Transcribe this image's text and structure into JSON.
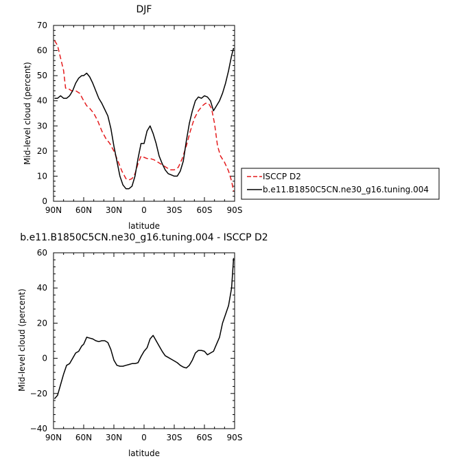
{
  "chart_data": [
    {
      "type": "line",
      "title": "DJF",
      "xlabel": "latitude",
      "ylabel": "Mid-level cloud (percent)",
      "xlim": [
        90,
        -90
      ],
      "ylim": [
        0,
        70
      ],
      "x_ticks": [
        90,
        60,
        30,
        0,
        -30,
        -60,
        -90
      ],
      "x_tick_labels": [
        "90N",
        "60N",
        "30N",
        "0",
        "30S",
        "60S",
        "90S"
      ],
      "y_ticks": [
        0,
        10,
        20,
        30,
        40,
        50,
        60,
        70
      ],
      "y_tick_labels": [
        "0",
        "10",
        "20",
        "30",
        "40",
        "50",
        "60",
        "70"
      ],
      "legend_position": "right",
      "series": [
        {
          "name": "ISCCP D2",
          "color": "#e41a1c",
          "dash": "dashed",
          "x": [
            89,
            86,
            83,
            80,
            78,
            76,
            72,
            68,
            64,
            60,
            57,
            54,
            50,
            46,
            42,
            38,
            34,
            30,
            26,
            22,
            18,
            15,
            12,
            9,
            6,
            3,
            0,
            -3,
            -6,
            -10,
            -14,
            -18,
            -22,
            -26,
            -30,
            -34,
            -38,
            -42,
            -46,
            -50,
            -54,
            -58,
            -61,
            -64,
            -67,
            -70,
            -73,
            -76,
            -80,
            -84,
            -87,
            -89
          ],
          "y": [
            64,
            62,
            57,
            52,
            45,
            45,
            44,
            44,
            43,
            40,
            38,
            37,
            35,
            32,
            28,
            25,
            23,
            20,
            16,
            12,
            9,
            8.5,
            9,
            11,
            15,
            18,
            17.5,
            17,
            17,
            16.5,
            15.5,
            14.5,
            13.5,
            12.5,
            12.5,
            13.5,
            17,
            22,
            28,
            33,
            36,
            38,
            39,
            39,
            37,
            31,
            22,
            18,
            15.5,
            12,
            8,
            4
          ]
        },
        {
          "name": "b.e11.B1850C5CN.ne30_g16.tuning.004",
          "color": "#000000",
          "dash": "solid",
          "x": [
            89,
            86,
            83,
            80,
            77,
            74,
            71,
            68,
            65,
            62,
            60,
            57,
            54,
            51,
            48,
            45,
            42,
            39,
            36,
            33,
            30,
            27,
            24,
            21,
            18,
            15,
            12,
            9,
            6,
            3,
            0,
            -3,
            -6,
            -9,
            -12,
            -15,
            -18,
            -21,
            -24,
            -27,
            -30,
            -33,
            -36,
            -39,
            -42,
            -45,
            -48,
            -51,
            -54,
            -57,
            -60,
            -63,
            -66,
            -69,
            -72,
            -75,
            -78,
            -81,
            -84,
            -87,
            -89
          ],
          "y": [
            41,
            41,
            42,
            41,
            41,
            42,
            44,
            47,
            49,
            50,
            50,
            51,
            49.5,
            47,
            44,
            41,
            39,
            36.5,
            34,
            29,
            22,
            16,
            10,
            6.5,
            5,
            5,
            6,
            10,
            17,
            23,
            23,
            28,
            30,
            27,
            23,
            18,
            15,
            12.5,
            11,
            10.5,
            10,
            10,
            12,
            16,
            24,
            31,
            36,
            40,
            41.5,
            41,
            42,
            41.5,
            40,
            36,
            38,
            40,
            43,
            47,
            52,
            58,
            61
          ]
        }
      ]
    },
    {
      "type": "line",
      "title": "b.e11.B1850C5CN.ne30_g16.tuning.004 - ISCCP D2",
      "xlabel": "latitude",
      "ylabel": "Mid-level cloud (percent)",
      "xlim": [
        90,
        -90
      ],
      "ylim": [
        -40,
        60
      ],
      "x_ticks": [
        90,
        60,
        30,
        0,
        -30,
        -60,
        -90
      ],
      "x_tick_labels": [
        "90N",
        "60N",
        "30N",
        "0",
        "30S",
        "60S",
        "90S"
      ],
      "y_ticks": [
        -40,
        -20,
        0,
        20,
        40,
        60
      ],
      "y_tick_labels": [
        "−40",
        "−20",
        "0",
        "20",
        "40",
        "60"
      ],
      "series": [
        {
          "color": "#000000",
          "dash": "solid",
          "x": [
            89,
            86,
            83,
            80,
            77,
            74,
            71,
            68,
            65,
            62,
            60,
            57,
            54,
            51,
            48,
            45,
            42,
            39,
            36,
            33,
            30,
            27,
            24,
            21,
            18,
            15,
            12,
            9,
            6,
            3,
            0,
            -3,
            -6,
            -9,
            -12,
            -15,
            -18,
            -21,
            -24,
            -27,
            -30,
            -33,
            -36,
            -39,
            -42,
            -45,
            -48,
            -51,
            -54,
            -57,
            -60,
            -63,
            -66,
            -69,
            -72,
            -75,
            -78,
            -81,
            -84,
            -87,
            -89
          ],
          "y": [
            -23,
            -21,
            -15,
            -9,
            -4,
            -3,
            0,
            3,
            4,
            7,
            8,
            12,
            11.5,
            11,
            10,
            9.5,
            10,
            10,
            9,
            5,
            -1,
            -4,
            -4.5,
            -4.5,
            -4,
            -3.5,
            -3,
            -3,
            -2.5,
            1,
            4,
            6,
            11,
            13,
            10,
            7,
            4,
            1.5,
            0.5,
            -0.5,
            -1.5,
            -2.5,
            -4,
            -5,
            -5.5,
            -4,
            -1,
            3,
            4.5,
            4.5,
            4,
            2,
            3,
            4,
            8,
            12,
            20,
            25,
            30,
            40,
            57
          ]
        }
      ]
    }
  ]
}
